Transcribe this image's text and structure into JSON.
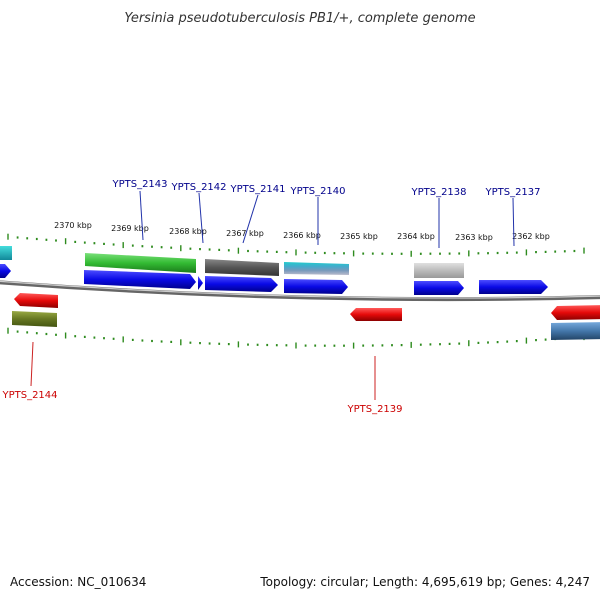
{
  "title": "Yersinia pseudotuberculosis PB1/+, complete genome",
  "footer": {
    "accession": "Accession: NC_010634",
    "summary": "Topology: circular; Length: 4,695,619 bp; Genes: 4,247"
  },
  "ruler": {
    "tick_color": "#2e8b1e",
    "labels": [
      "2370 kbp",
      "2369 kbp",
      "2368 kbp",
      "2367 kbp",
      "2366 kbp",
      "2365 kbp",
      "2364 kbp",
      "2363 kbp",
      "2362 kbp"
    ]
  },
  "gene_labels": {
    "forward_color": "#00008b",
    "reverse_color": "#cc0000",
    "forward": [
      "YPTS_2143",
      "YPTS_2142",
      "YPTS_2141",
      "YPTS_2140",
      "YPTS_2138",
      "YPTS_2137"
    ],
    "reverse": [
      "YPTS_2144",
      "YPTS_2139"
    ]
  },
  "colors": {
    "cds_forward": "#1010e0",
    "cds_reverse": "#e01010",
    "backbone": "#888888",
    "green_feature": "#33bb33",
    "dark_gray_feature": "#555555",
    "cyan_feature": "#22aacc",
    "light_gray_feature": "#bbbbbb",
    "olive_feature": "#667722",
    "steel_feature": "#4477aa"
  }
}
